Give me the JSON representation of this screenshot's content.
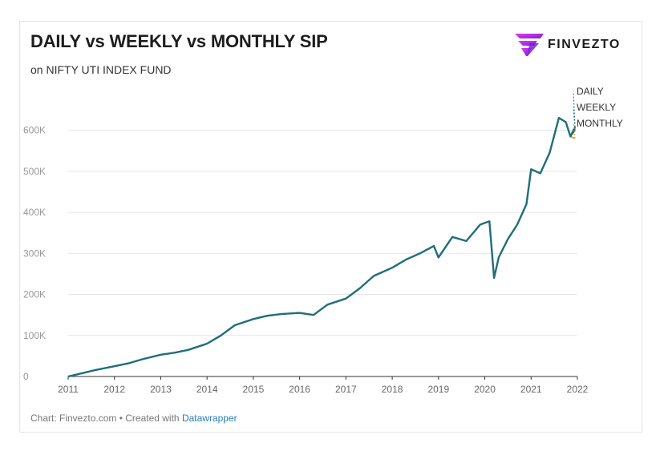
{
  "header": {
    "title": "DAILY vs WEEKLY vs MONTHLY SIP",
    "subtitle": "on NIFTY UTI INDEX FUND"
  },
  "brand": {
    "name": "FINVEZTO",
    "icon": "finvezto-logo-icon",
    "color_a": "#e33df0",
    "color_b": "#7b1fd6"
  },
  "footer": {
    "prefix": "Chart: Finvezto.com • Created with ",
    "link": "Datawrapper"
  },
  "chart_data": {
    "type": "line",
    "xlabel": "",
    "ylabel": "",
    "xlim": [
      2011,
      2022
    ],
    "ylim": [
      0,
      600000
    ],
    "x_ticks": [
      "2011",
      "2012",
      "2013",
      "2014",
      "2015",
      "2016",
      "2017",
      "2018",
      "2019",
      "2020",
      "2021",
      "2022"
    ],
    "y_ticks": [
      {
        "value": 0,
        "label": "0"
      },
      {
        "value": 100000,
        "label": "100K"
      },
      {
        "value": 200000,
        "label": "200K"
      },
      {
        "value": 300000,
        "label": "300K"
      },
      {
        "value": 400000,
        "label": "400K"
      },
      {
        "value": 500000,
        "label": "500K"
      },
      {
        "value": 600000,
        "label": "600K"
      }
    ],
    "grid": true,
    "legend": "right-end labels",
    "series": [
      {
        "name": "DAILY",
        "color": "#1f6f7a",
        "x": [
          2011.0,
          2011.3,
          2011.6,
          2012.0,
          2012.3,
          2012.6,
          2013.0,
          2013.3,
          2013.6,
          2014.0,
          2014.3,
          2014.6,
          2015.0,
          2015.3,
          2015.6,
          2016.0,
          2016.3,
          2016.6,
          2017.0,
          2017.3,
          2017.6,
          2018.0,
          2018.3,
          2018.6,
          2018.9,
          2019.0,
          2019.3,
          2019.6,
          2019.9,
          2020.1,
          2020.2,
          2020.3,
          2020.5,
          2020.7,
          2020.9,
          2021.0,
          2021.2,
          2021.4,
          2021.6,
          2021.75,
          2021.85,
          2021.95
        ],
        "y": [
          0,
          8000,
          16000,
          25000,
          32000,
          42000,
          53000,
          58000,
          65000,
          80000,
          100000,
          125000,
          140000,
          148000,
          152000,
          155000,
          150000,
          175000,
          190000,
          215000,
          245000,
          265000,
          285000,
          300000,
          318000,
          290000,
          340000,
          330000,
          370000,
          378000,
          240000,
          290000,
          335000,
          370000,
          420000,
          505000,
          495000,
          545000,
          630000,
          620000,
          585000,
          608000
        ]
      },
      {
        "name": "WEEKLY",
        "color": "#2a5f6b",
        "x": [
          2011.0,
          2011.3,
          2011.6,
          2012.0,
          2012.3,
          2012.6,
          2013.0,
          2013.3,
          2013.6,
          2014.0,
          2014.3,
          2014.6,
          2015.0,
          2015.3,
          2015.6,
          2016.0,
          2016.3,
          2016.6,
          2017.0,
          2017.3,
          2017.6,
          2018.0,
          2018.3,
          2018.6,
          2018.9,
          2019.0,
          2019.3,
          2019.6,
          2019.9,
          2020.1,
          2020.2,
          2020.3,
          2020.5,
          2020.7,
          2020.9,
          2021.0,
          2021.2,
          2021.4,
          2021.6,
          2021.75,
          2021.85,
          2021.95
        ],
        "y": [
          0,
          8000,
          16000,
          25000,
          32000,
          42000,
          53000,
          58000,
          65000,
          80000,
          100000,
          125000,
          140000,
          148000,
          152000,
          155000,
          150000,
          175000,
          190000,
          215000,
          245000,
          265000,
          285000,
          300000,
          318000,
          290000,
          340000,
          330000,
          370000,
          378000,
          240000,
          290000,
          335000,
          370000,
          420000,
          505000,
          495000,
          545000,
          630000,
          620000,
          585000,
          600000
        ]
      },
      {
        "name": "MONTHLY",
        "color": "#d9a441",
        "x": [
          2011.0,
          2011.3,
          2011.6,
          2012.0,
          2012.3,
          2012.6,
          2013.0,
          2013.3,
          2013.6,
          2014.0,
          2014.3,
          2014.6,
          2015.0,
          2015.3,
          2015.6,
          2016.0,
          2016.3,
          2016.6,
          2017.0,
          2017.3,
          2017.6,
          2018.0,
          2018.3,
          2018.6,
          2018.9,
          2019.0,
          2019.3,
          2019.6,
          2019.9,
          2020.1,
          2020.2,
          2020.3,
          2020.5,
          2020.7,
          2020.9,
          2021.0,
          2021.2,
          2021.4,
          2021.6,
          2021.75,
          2021.85,
          2021.95
        ],
        "y": [
          0,
          8000,
          16000,
          25000,
          32000,
          42000,
          53000,
          58000,
          65000,
          80000,
          100000,
          125000,
          140000,
          148000,
          152000,
          155000,
          150000,
          175000,
          190000,
          215000,
          245000,
          265000,
          285000,
          300000,
          318000,
          290000,
          340000,
          330000,
          370000,
          378000,
          240000,
          290000,
          335000,
          370000,
          420000,
          505000,
          495000,
          545000,
          630000,
          620000,
          585000,
          580000
        ]
      }
    ]
  }
}
